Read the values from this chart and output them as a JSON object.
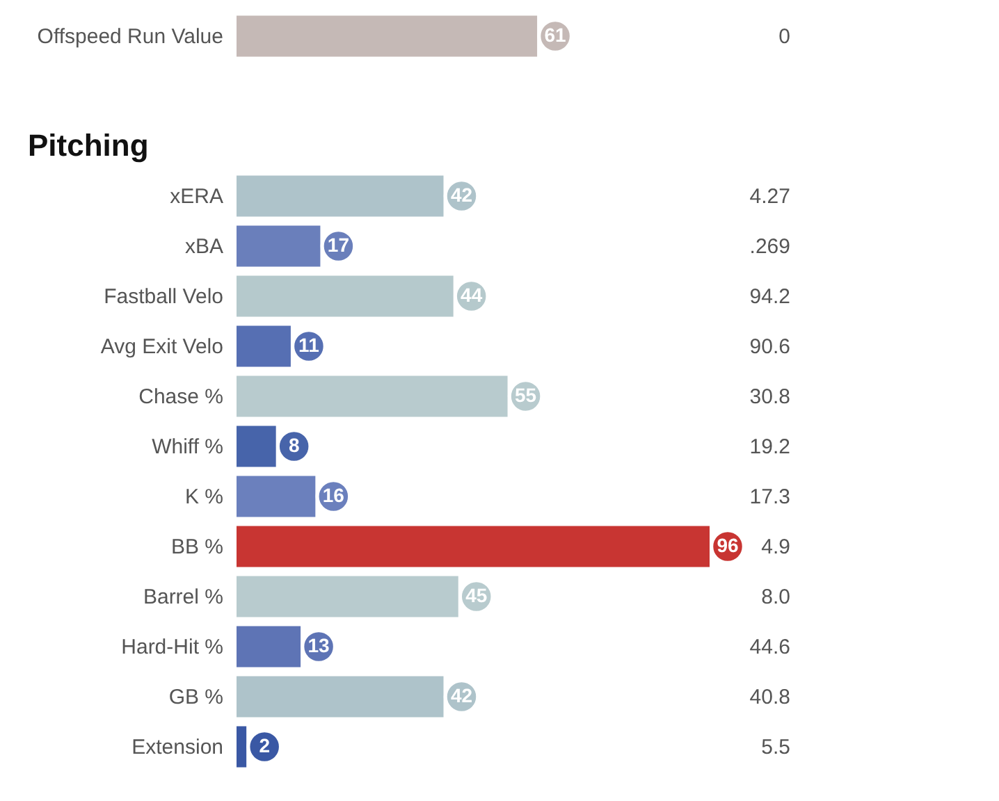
{
  "chart_data": [
    {
      "type": "bar",
      "orientation": "horizontal",
      "categories": [
        "Offspeed Run Value"
      ],
      "values": [
        61
      ],
      "colors": [
        "#c5b9b6"
      ],
      "data_labels": true,
      "tick_labels": "y",
      "annotations": [
        "0"
      ]
    },
    {
      "type": "bar",
      "orientation": "horizontal",
      "title": "Pitching",
      "categories": [
        "xERA",
        "xBA",
        "Fastball Velo",
        "Avg Exit Velo",
        "Chase %",
        "Whiff %",
        "K %",
        "BB %",
        "Barrel %",
        "Hard-Hit %",
        "GB %",
        "Extension"
      ],
      "values": [
        42,
        17,
        44,
        11,
        55,
        8,
        16,
        96,
        45,
        13,
        42,
        2
      ],
      "colors": [
        "#aec3ca",
        "#6a7fbb",
        "#b5c9cc",
        "#566fb3",
        "#b8cbce",
        "#4764aa",
        "#6b80bd",
        "#c83532",
        "#b8cbce",
        "#5e74b5",
        "#aec3ca",
        "#3a58a4"
      ],
      "data_labels": true,
      "tick_labels": "y",
      "annotations": [
        "4.27",
        ".269",
        "94.2",
        "90.6",
        "30.8",
        "19.2",
        "17.3",
        "4.9",
        "8.0",
        "44.6",
        "40.8",
        "5.5"
      ]
    }
  ]
}
